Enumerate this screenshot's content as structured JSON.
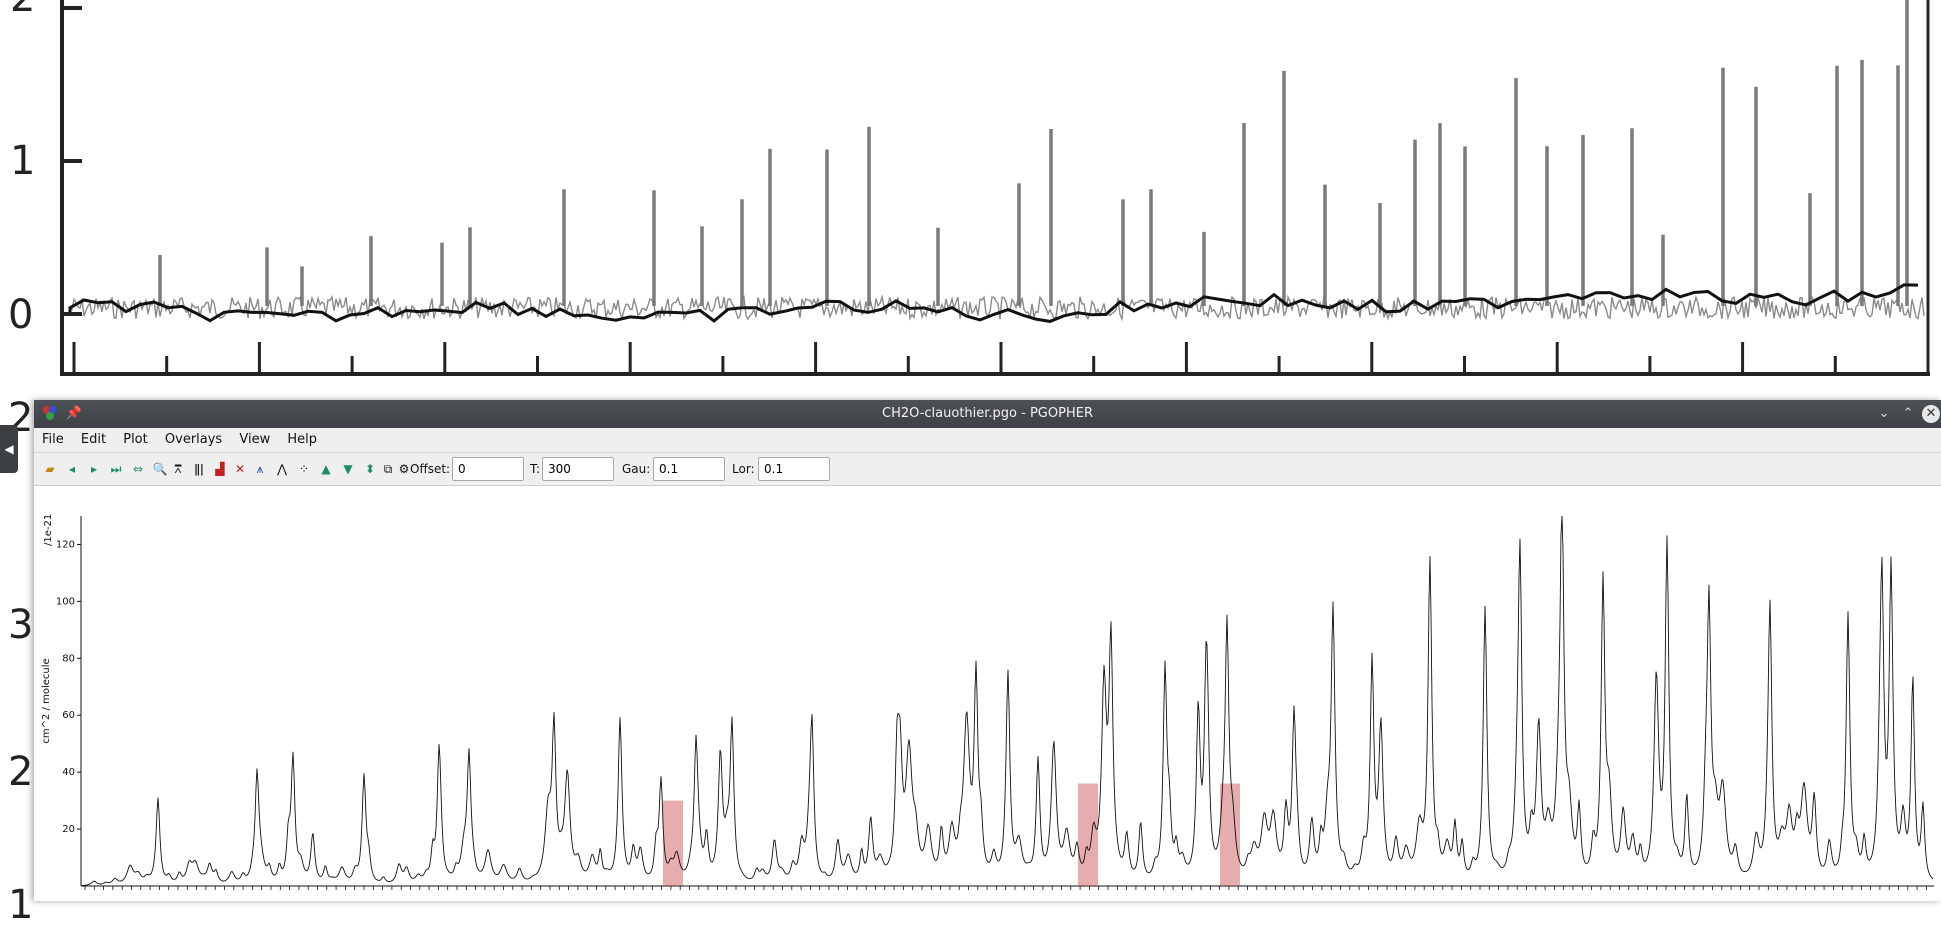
{
  "background_figure": {
    "y_ticks": [
      "2",
      "1",
      "0"
    ],
    "side_numbers": [
      "2",
      "3",
      "2",
      "1"
    ]
  },
  "window": {
    "title": "CH2O-clauothier.pgo - PGOPHER",
    "menu": [
      "File",
      "Edit",
      "Plot",
      "Overlays",
      "View",
      "Help"
    ],
    "toolbar": {
      "offset_label": "Offset:",
      "offset_value": "0",
      "t_label": "T:",
      "t_value": "300",
      "gau_label": "Gau:",
      "gau_value": "0.1",
      "lor_label": "Lor:",
      "lor_value": "0.1"
    },
    "icons": [
      "app-icon",
      "pin-icon",
      "minimize-icon",
      "maximize-icon",
      "close-icon"
    ]
  },
  "chart_data": {
    "type": "line",
    "ylabel": "cm^2 / molecule",
    "yunit": "/1e-21",
    "yticks": [
      120,
      100,
      80,
      60,
      40,
      20
    ],
    "ylim": [
      0,
      130
    ],
    "highlight_color": "#c8474b",
    "highlights": [
      {
        "label": "",
        "peak": 30
      },
      {
        "label": "",
        "peak": 36
      },
      {
        "label": "",
        "peak": 36
      }
    ]
  }
}
